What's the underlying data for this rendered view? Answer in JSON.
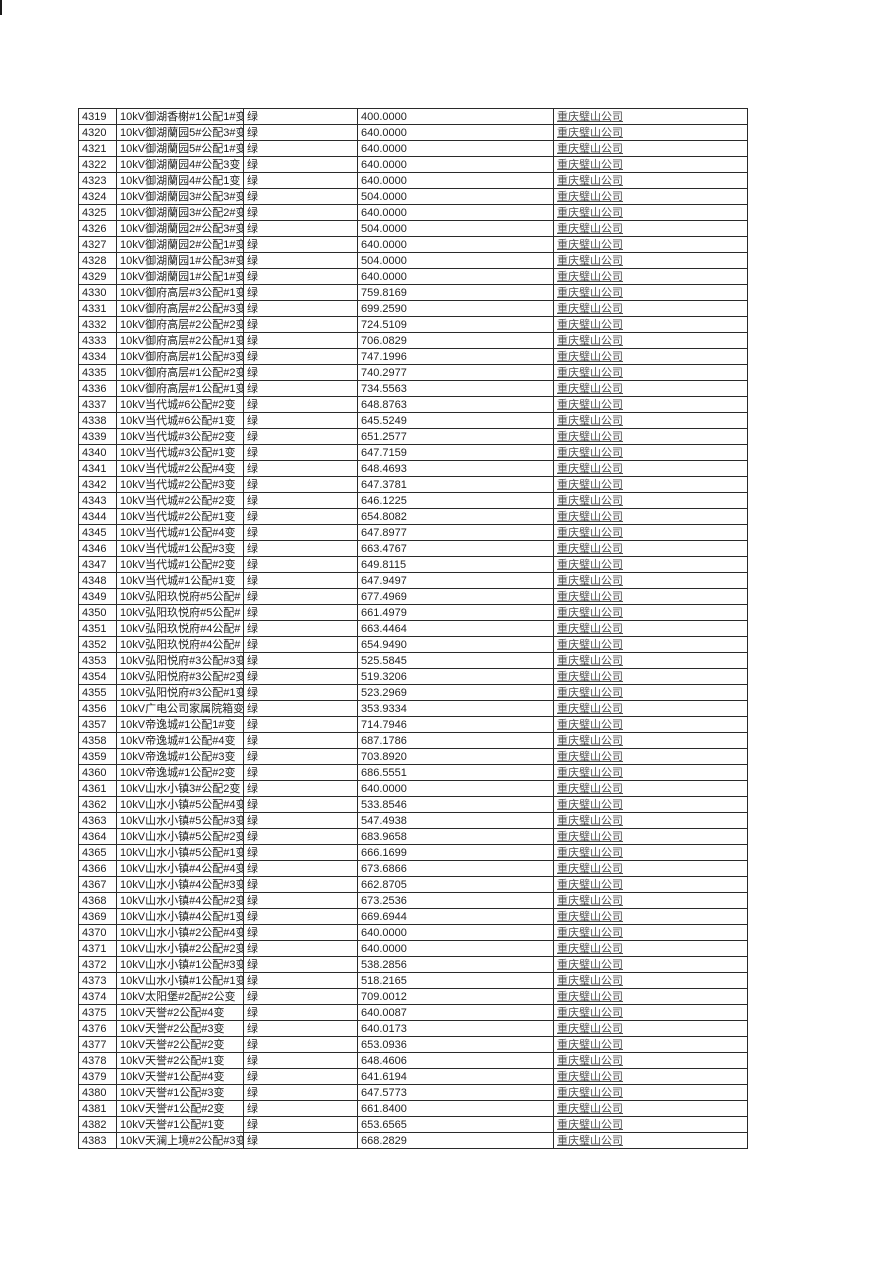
{
  "page": {
    "background_color": "#ffffff",
    "grid_color": "#2a2a2a",
    "text_color": "#1f1f1f",
    "company_text_color": "#4f4f4f",
    "status_color_meaning": "绿 = green status"
  },
  "table": {
    "columns": [
      {
        "key": "id",
        "name": "row-id"
      },
      {
        "key": "name",
        "name": "device-name"
      },
      {
        "key": "status",
        "name": "status"
      },
      {
        "key": "value",
        "name": "value"
      },
      {
        "key": "company",
        "name": "company"
      }
    ],
    "rows": [
      {
        "id": "4319",
        "name": "10kV御湖香榭#1公配1#变",
        "status": "绿",
        "value": "400.0000",
        "company": "重庆璧山公司"
      },
      {
        "id": "4320",
        "name": "10kV御湖蘭园5#公配3#变",
        "status": "绿",
        "value": "640.0000",
        "company": "重庆璧山公司"
      },
      {
        "id": "4321",
        "name": "10kV御湖蘭园5#公配1#变",
        "status": "绿",
        "value": "640.0000",
        "company": "重庆璧山公司"
      },
      {
        "id": "4322",
        "name": "10kV御湖蘭园4#公配3变",
        "status": "绿",
        "value": "640.0000",
        "company": "重庆璧山公司"
      },
      {
        "id": "4323",
        "name": "10kV御湖蘭园4#公配1变",
        "status": "绿",
        "value": "640.0000",
        "company": "重庆璧山公司"
      },
      {
        "id": "4324",
        "name": "10kV御湖蘭园3#公配3#变",
        "status": "绿",
        "value": "504.0000",
        "company": "重庆璧山公司"
      },
      {
        "id": "4325",
        "name": "10kV御湖蘭园3#公配2#变",
        "status": "绿",
        "value": "640.0000",
        "company": "重庆璧山公司"
      },
      {
        "id": "4326",
        "name": "10kV御湖蘭园2#公配3#变",
        "status": "绿",
        "value": "504.0000",
        "company": "重庆璧山公司"
      },
      {
        "id": "4327",
        "name": "10kV御湖蘭园2#公配1#变",
        "status": "绿",
        "value": "640.0000",
        "company": "重庆璧山公司"
      },
      {
        "id": "4328",
        "name": "10kV御湖蘭园1#公配3#变",
        "status": "绿",
        "value": "504.0000",
        "company": "重庆璧山公司"
      },
      {
        "id": "4329",
        "name": "10kV御湖蘭园1#公配1#变",
        "status": "绿",
        "value": "640.0000",
        "company": "重庆璧山公司"
      },
      {
        "id": "4330",
        "name": "10kV御府高层#3公配#1变",
        "status": "绿",
        "value": "759.8169",
        "company": "重庆璧山公司"
      },
      {
        "id": "4331",
        "name": "10kV御府高层#2公配#3变",
        "status": "绿",
        "value": "699.2590",
        "company": "重庆璧山公司"
      },
      {
        "id": "4332",
        "name": "10kV御府高层#2公配#2变",
        "status": "绿",
        "value": "724.5109",
        "company": "重庆璧山公司"
      },
      {
        "id": "4333",
        "name": "10kV御府高层#2公配#1变",
        "status": "绿",
        "value": "706.0829",
        "company": "重庆璧山公司"
      },
      {
        "id": "4334",
        "name": "10kV御府高层#1公配#3变",
        "status": "绿",
        "value": "747.1996",
        "company": "重庆璧山公司"
      },
      {
        "id": "4335",
        "name": "10kV御府高层#1公配#2变",
        "status": "绿",
        "value": "740.2977",
        "company": "重庆璧山公司"
      },
      {
        "id": "4336",
        "name": "10kV御府高层#1公配#1变",
        "status": "绿",
        "value": "734.5563",
        "company": "重庆璧山公司"
      },
      {
        "id": "4337",
        "name": "10kV当代城#6公配#2变",
        "status": "绿",
        "value": "648.8763",
        "company": "重庆璧山公司"
      },
      {
        "id": "4338",
        "name": "10kV当代城#6公配#1变",
        "status": "绿",
        "value": "645.5249",
        "company": "重庆璧山公司"
      },
      {
        "id": "4339",
        "name": "10kV当代城#3公配#2变",
        "status": "绿",
        "value": "651.2577",
        "company": "重庆璧山公司"
      },
      {
        "id": "4340",
        "name": "10kV当代城#3公配#1变",
        "status": "绿",
        "value": "647.7159",
        "company": "重庆璧山公司"
      },
      {
        "id": "4341",
        "name": "10kV当代城#2公配#4变",
        "status": "绿",
        "value": "648.4693",
        "company": "重庆璧山公司"
      },
      {
        "id": "4342",
        "name": "10kV当代城#2公配#3变",
        "status": "绿",
        "value": "647.3781",
        "company": "重庆璧山公司"
      },
      {
        "id": "4343",
        "name": "10kV当代城#2公配#2变",
        "status": "绿",
        "value": "646.1225",
        "company": "重庆璧山公司"
      },
      {
        "id": "4344",
        "name": "10kV当代城#2公配#1变",
        "status": "绿",
        "value": "654.8082",
        "company": "重庆璧山公司"
      },
      {
        "id": "4345",
        "name": "10kV当代城#1公配#4变",
        "status": "绿",
        "value": "647.8977",
        "company": "重庆璧山公司"
      },
      {
        "id": "4346",
        "name": "10kV当代城#1公配#3变",
        "status": "绿",
        "value": "663.4767",
        "company": "重庆璧山公司"
      },
      {
        "id": "4347",
        "name": "10kV当代城#1公配#2变",
        "status": "绿",
        "value": "649.8115",
        "company": "重庆璧山公司"
      },
      {
        "id": "4348",
        "name": "10kV当代城#1公配#1变",
        "status": "绿",
        "value": "647.9497",
        "company": "重庆璧山公司"
      },
      {
        "id": "4349",
        "name": "10kV弘阳玖悦府#5公配#",
        "status": "绿",
        "value": "677.4969",
        "company": "重庆璧山公司"
      },
      {
        "id": "4350",
        "name": "10kV弘阳玖悦府#5公配#",
        "status": "绿",
        "value": "661.4979",
        "company": "重庆璧山公司"
      },
      {
        "id": "4351",
        "name": "10kV弘阳玖悦府#4公配#",
        "status": "绿",
        "value": "663.4464",
        "company": "重庆璧山公司"
      },
      {
        "id": "4352",
        "name": "10kV弘阳玖悦府#4公配#",
        "status": "绿",
        "value": "654.9490",
        "company": "重庆璧山公司"
      },
      {
        "id": "4353",
        "name": "10kV弘阳悦府#3公配#3变",
        "status": "绿",
        "value": "525.5845",
        "company": "重庆璧山公司"
      },
      {
        "id": "4354",
        "name": "10kV弘阳悦府#3公配#2变",
        "status": "绿",
        "value": "519.3206",
        "company": "重庆璧山公司"
      },
      {
        "id": "4355",
        "name": "10kV弘阳悦府#3公配#1变",
        "status": "绿",
        "value": "523.2969",
        "company": "重庆璧山公司"
      },
      {
        "id": "4356",
        "name": "10kV广电公司家属院箱变",
        "status": "绿",
        "value": "353.9334",
        "company": "重庆璧山公司"
      },
      {
        "id": "4357",
        "name": "10kV帝逸城#1公配1#变",
        "status": "绿",
        "value": "714.7946",
        "company": "重庆璧山公司"
      },
      {
        "id": "4358",
        "name": "10kV帝逸城#1公配#4变",
        "status": "绿",
        "value": "687.1786",
        "company": "重庆璧山公司"
      },
      {
        "id": "4359",
        "name": "10kV帝逸城#1公配#3变",
        "status": "绿",
        "value": "703.8920",
        "company": "重庆璧山公司"
      },
      {
        "id": "4360",
        "name": "10kV帝逸城#1公配#2变",
        "status": "绿",
        "value": "686.5551",
        "company": "重庆璧山公司"
      },
      {
        "id": "4361",
        "name": "10kV山水小镇3#公配2变",
        "status": "绿",
        "value": "640.0000",
        "company": "重庆璧山公司"
      },
      {
        "id": "4362",
        "name": "10kV山水小镇#5公配#4变",
        "status": "绿",
        "value": "533.8546",
        "company": "重庆璧山公司"
      },
      {
        "id": "4363",
        "name": "10kV山水小镇#5公配#3变",
        "status": "绿",
        "value": "547.4938",
        "company": "重庆璧山公司"
      },
      {
        "id": "4364",
        "name": "10kV山水小镇#5公配#2变",
        "status": "绿",
        "value": "683.9658",
        "company": "重庆璧山公司"
      },
      {
        "id": "4365",
        "name": "10kV山水小镇#5公配#1变",
        "status": "绿",
        "value": "666.1699",
        "company": "重庆璧山公司"
      },
      {
        "id": "4366",
        "name": "10kV山水小镇#4公配#4变",
        "status": "绿",
        "value": "673.6866",
        "company": "重庆璧山公司"
      },
      {
        "id": "4367",
        "name": "10kV山水小镇#4公配#3变",
        "status": "绿",
        "value": "662.8705",
        "company": "重庆璧山公司"
      },
      {
        "id": "4368",
        "name": "10kV山水小镇#4公配#2变",
        "status": "绿",
        "value": "673.2536",
        "company": "重庆璧山公司"
      },
      {
        "id": "4369",
        "name": "10kV山水小镇#4公配#1变",
        "status": "绿",
        "value": "669.6944",
        "company": "重庆璧山公司"
      },
      {
        "id": "4370",
        "name": "10kV山水小镇#2公配#4变",
        "status": "绿",
        "value": "640.0000",
        "company": "重庆璧山公司"
      },
      {
        "id": "4371",
        "name": "10kV山水小镇#2公配#2变",
        "status": "绿",
        "value": "640.0000",
        "company": "重庆璧山公司"
      },
      {
        "id": "4372",
        "name": "10kV山水小镇#1公配#3变",
        "status": "绿",
        "value": "538.2856",
        "company": "重庆璧山公司"
      },
      {
        "id": "4373",
        "name": "10kV山水小镇#1公配#1变",
        "status": "绿",
        "value": "518.2165",
        "company": "重庆璧山公司"
      },
      {
        "id": "4374",
        "name": "10kV太阳堡#2配#2公变",
        "status": "绿",
        "value": "709.0012",
        "company": "重庆璧山公司"
      },
      {
        "id": "4375",
        "name": "10kV天誉#2公配#4变",
        "status": "绿",
        "value": "640.0087",
        "company": "重庆璧山公司"
      },
      {
        "id": "4376",
        "name": "10kV天誉#2公配#3变",
        "status": "绿",
        "value": "640.0173",
        "company": "重庆璧山公司"
      },
      {
        "id": "4377",
        "name": "10kV天誉#2公配#2变",
        "status": "绿",
        "value": "653.0936",
        "company": "重庆璧山公司"
      },
      {
        "id": "4378",
        "name": "10kV天誉#2公配#1变",
        "status": "绿",
        "value": "648.4606",
        "company": "重庆璧山公司"
      },
      {
        "id": "4379",
        "name": "10kV天誉#1公配#4变",
        "status": "绿",
        "value": "641.6194",
        "company": "重庆璧山公司"
      },
      {
        "id": "4380",
        "name": "10kV天誉#1公配#3变",
        "status": "绿",
        "value": "647.5773",
        "company": "重庆璧山公司"
      },
      {
        "id": "4381",
        "name": "10kV天誉#1公配#2变",
        "status": "绿",
        "value": "661.8400",
        "company": "重庆璧山公司"
      },
      {
        "id": "4382",
        "name": "10kV天誉#1公配#1变",
        "status": "绿",
        "value": "653.6565",
        "company": "重庆璧山公司"
      },
      {
        "id": "4383",
        "name": "10kV天澜上境#2公配#3变",
        "status": "绿",
        "value": "668.2829",
        "company": "重庆璧山公司"
      }
    ]
  }
}
